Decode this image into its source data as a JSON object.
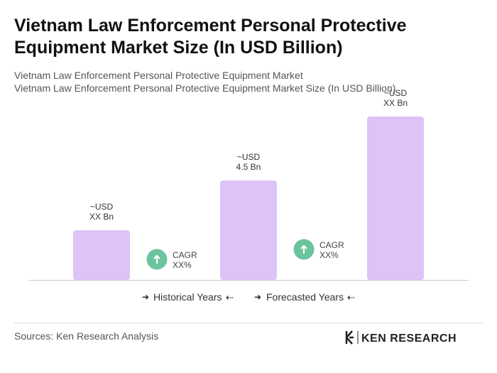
{
  "chart_data": {
    "type": "bar",
    "title": [
      "Vietnam Law Enforcement Personal Protective",
      "Equipment Market Size (In USD Billion)"
    ],
    "subtitle": [
      "Vietnam Law Enforcement Personal Protective Equipment Market",
      "Vietnam Law Enforcement Personal Protective Equipment Market Size (In USD Billion)"
    ],
    "categories": [
      null,
      null,
      null
    ],
    "values": [
      2.25,
      4.5,
      7.4
    ],
    "value_labels": [
      [
        "~USD",
        "XX Bn"
      ],
      [
        "~USD",
        "4.5 Bn"
      ],
      [
        "~USD",
        "XX Bn"
      ]
    ],
    "color": "#dcc3f8",
    "annotations": [
      [
        "CAGR",
        "XX%"
      ],
      [
        "CAGR",
        "XX%"
      ]
    ],
    "legend": [
      "Historical Years",
      "Forecasted Years"
    ],
    "source": "Sources: Ken Research Analysis",
    "brand": "KEN RESEARCH"
  }
}
